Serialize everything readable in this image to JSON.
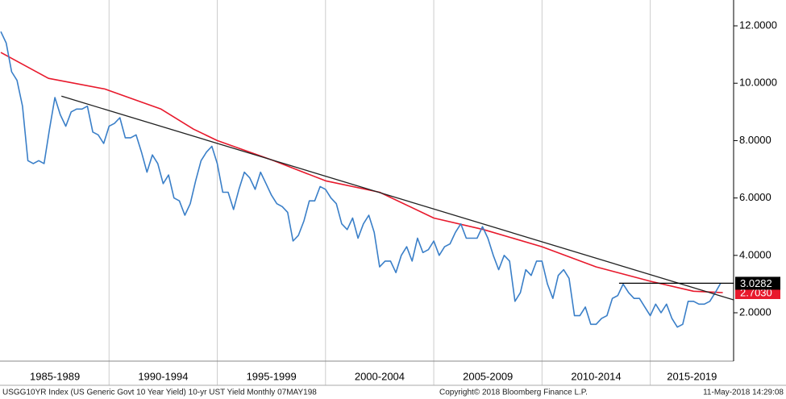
{
  "chart_data": {
    "type": "line",
    "xlim": [
      1985,
      2018.85
    ],
    "xticks": [
      1985,
      1990,
      1995,
      2000,
      2005,
      2010,
      2015,
      2020
    ],
    "categories": [
      "1985-1989",
      "1990-1994",
      "1995-1999",
      "2000-2004",
      "2005-2009",
      "2010-2014",
      "2015-2019"
    ],
    "ylim": [
      0.315,
      12.9
    ],
    "yticks": [
      {
        "value": 2,
        "label": "2.0000"
      },
      {
        "value": 4,
        "label": "4.0000"
      },
      {
        "value": 6,
        "label": "6.0000"
      },
      {
        "value": 8,
        "label": "8.0000"
      },
      {
        "value": 10,
        "label": "10.0000"
      },
      {
        "value": 12,
        "label": "12.0000"
      }
    ],
    "series": [
      {
        "color": "#3a7fc8",
        "last_label": "3.0282",
        "x": [
          1985,
          1985.25,
          1985.5,
          1985.75,
          1986,
          1986.25,
          1986.5,
          1986.75,
          1987,
          1987.25,
          1987.5,
          1987.75,
          1988,
          1988.25,
          1988.5,
          1988.75,
          1989,
          1989.25,
          1989.5,
          1989.75,
          1990,
          1990.25,
          1990.5,
          1990.75,
          1991,
          1991.25,
          1991.5,
          1991.75,
          1992,
          1992.25,
          1992.5,
          1992.75,
          1993,
          1993.25,
          1993.5,
          1993.75,
          1994,
          1994.25,
          1994.5,
          1994.75,
          1995,
          1995.25,
          1995.5,
          1995.75,
          1996,
          1996.25,
          1996.5,
          1996.75,
          1997,
          1997.25,
          1997.5,
          1997.75,
          1998,
          1998.25,
          1998.5,
          1998.75,
          1999,
          1999.25,
          1999.5,
          1999.75,
          2000,
          2000.25,
          2000.5,
          2000.75,
          2001,
          2001.25,
          2001.5,
          2001.75,
          2002,
          2002.25,
          2002.5,
          2002.75,
          2003,
          2003.25,
          2003.5,
          2003.75,
          2004,
          2004.25,
          2004.5,
          2004.75,
          2005,
          2005.25,
          2005.5,
          2005.75,
          2006,
          2006.25,
          2006.5,
          2006.75,
          2007,
          2007.25,
          2007.5,
          2007.75,
          2008,
          2008.25,
          2008.5,
          2008.75,
          2009,
          2009.25,
          2009.5,
          2009.75,
          2010,
          2010.25,
          2010.5,
          2010.75,
          2011,
          2011.25,
          2011.5,
          2011.75,
          2012,
          2012.25,
          2012.5,
          2012.75,
          2013,
          2013.25,
          2013.5,
          2013.75,
          2014,
          2014.25,
          2014.5,
          2014.75,
          2015,
          2015.25,
          2015.5,
          2015.75,
          2016,
          2016.25,
          2016.5,
          2016.75,
          2017,
          2017.25,
          2017.5,
          2017.75,
          2018,
          2018.25
        ],
        "values": [
          11.8,
          11.4,
          10.4,
          10.1,
          9.2,
          7.3,
          7.2,
          7.3,
          7.2,
          8.4,
          9.5,
          8.9,
          8.5,
          9.0,
          9.1,
          9.1,
          9.2,
          8.3,
          8.2,
          7.9,
          8.5,
          8.6,
          8.8,
          8.1,
          8.1,
          8.2,
          7.6,
          6.9,
          7.5,
          7.2,
          6.5,
          6.8,
          6.0,
          5.9,
          5.4,
          5.8,
          6.6,
          7.3,
          7.6,
          7.8,
          7.2,
          6.2,
          6.2,
          5.6,
          6.3,
          6.9,
          6.7,
          6.3,
          6.9,
          6.5,
          6.1,
          5.8,
          5.7,
          5.5,
          4.5,
          4.7,
          5.2,
          5.9,
          5.9,
          6.4,
          6.3,
          6.0,
          5.8,
          5.1,
          4.9,
          5.3,
          4.6,
          5.1,
          5.4,
          4.8,
          3.6,
          3.8,
          3.8,
          3.4,
          4.0,
          4.3,
          3.8,
          4.6,
          4.1,
          4.2,
          4.5,
          4.0,
          4.3,
          4.4,
          4.8,
          5.1,
          4.6,
          4.6,
          4.6,
          5.0,
          4.6,
          4.0,
          3.5,
          4.0,
          3.8,
          2.4,
          2.7,
          3.5,
          3.3,
          3.8,
          3.8,
          3.0,
          2.5,
          3.3,
          3.5,
          3.2,
          1.9,
          1.9,
          2.2,
          1.6,
          1.6,
          1.8,
          1.9,
          2.5,
          2.6,
          3.0,
          2.7,
          2.5,
          2.5,
          2.2,
          1.9,
          2.3,
          2.0,
          2.3,
          1.8,
          1.5,
          1.6,
          2.4,
          2.4,
          2.3,
          2.3,
          2.4,
          2.7,
          3.0282
        ]
      },
      {
        "color": "#e8192c",
        "last_label": {
          "value": 2.703,
          "label": "2.7030"
        },
        "x": [
          1985,
          1987.2,
          1989.8,
          1992.4,
          1993.9,
          1995,
          1997.6,
          2000,
          2002.5,
          2005,
          2007.3,
          2010,
          2012.5,
          2015,
          2017,
          2018.35
        ],
        "values": [
          11.07,
          10.17,
          9.8,
          9.1,
          8.4,
          8.0,
          7.3,
          6.6,
          6.2,
          5.3,
          4.9,
          4.3,
          3.6,
          3.1,
          2.75,
          2.703
        ]
      }
    ],
    "trend_line": {
      "x": [
        1987.8,
        2018.85
      ],
      "values": [
        9.55,
        2.45
      ]
    },
    "last_line": {
      "x": [
        2013.56,
        2018.85
      ],
      "values": [
        3.0282,
        3.0282
      ]
    },
    "footer": [
      "USGG10YR Index (US Generic Govt 10 Year Yield) 10-yr UST Yield  Monthly 07MAY198",
      "Copyright© 2018 Bloomberg Finance L.P.",
      "11-May-2018 14:29:08"
    ]
  }
}
